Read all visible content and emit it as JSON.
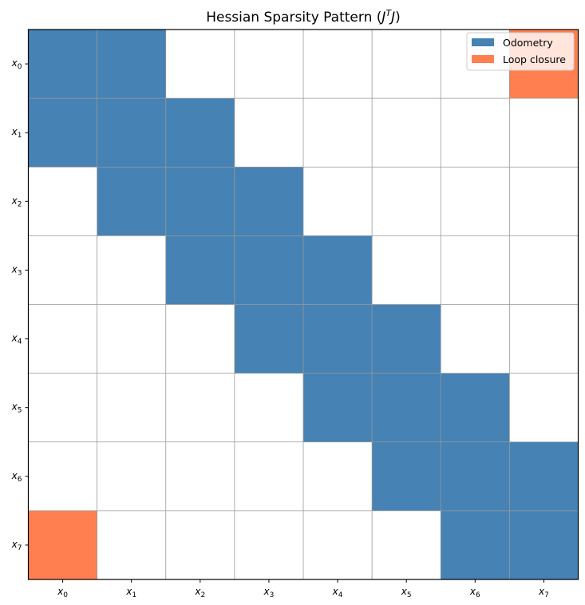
{
  "chart_data": {
    "type": "heatmap",
    "title": "Hessian Sparsity Pattern (J^T J)",
    "title_parts": {
      "main": "Hessian Sparsity Pattern (",
      "sym1": "J",
      "sup": "T",
      "sym2": "J",
      "close": ")"
    },
    "xlabels": [
      "x0",
      "x1",
      "x2",
      "x3",
      "x4",
      "x5",
      "x6",
      "x7"
    ],
    "ylabels": [
      "x0",
      "x1",
      "x2",
      "x3",
      "x4",
      "x5",
      "x6",
      "x7"
    ],
    "label_parts": [
      {
        "base": "x",
        "sub": "0"
      },
      {
        "base": "x",
        "sub": "1"
      },
      {
        "base": "x",
        "sub": "2"
      },
      {
        "base": "x",
        "sub": "3"
      },
      {
        "base": "x",
        "sub": "4"
      },
      {
        "base": "x",
        "sub": "5"
      },
      {
        "base": "x",
        "sub": "6"
      },
      {
        "base": "x",
        "sub": "7"
      }
    ],
    "matrix": [
      [
        1,
        1,
        0,
        0,
        0,
        0,
        0,
        2
      ],
      [
        1,
        1,
        1,
        0,
        0,
        0,
        0,
        0
      ],
      [
        0,
        1,
        1,
        1,
        0,
        0,
        0,
        0
      ],
      [
        0,
        0,
        1,
        1,
        1,
        0,
        0,
        0
      ],
      [
        0,
        0,
        0,
        1,
        1,
        1,
        0,
        0
      ],
      [
        0,
        0,
        0,
        0,
        1,
        1,
        1,
        0
      ],
      [
        0,
        0,
        0,
        0,
        0,
        1,
        1,
        1
      ],
      [
        2,
        0,
        0,
        0,
        0,
        0,
        1,
        1
      ]
    ],
    "value_meaning": {
      "0": "zero",
      "1": "Odometry",
      "2": "Loop closure"
    },
    "legend": [
      {
        "label": "Odometry",
        "color": "#4682b4"
      },
      {
        "label": "Loop closure",
        "color": "#ff7f50"
      }
    ],
    "legend_position": "top-right",
    "grid": true,
    "colors": {
      "empty": "#ffffff",
      "grid": "#999999",
      "axis": "#000000"
    }
  }
}
